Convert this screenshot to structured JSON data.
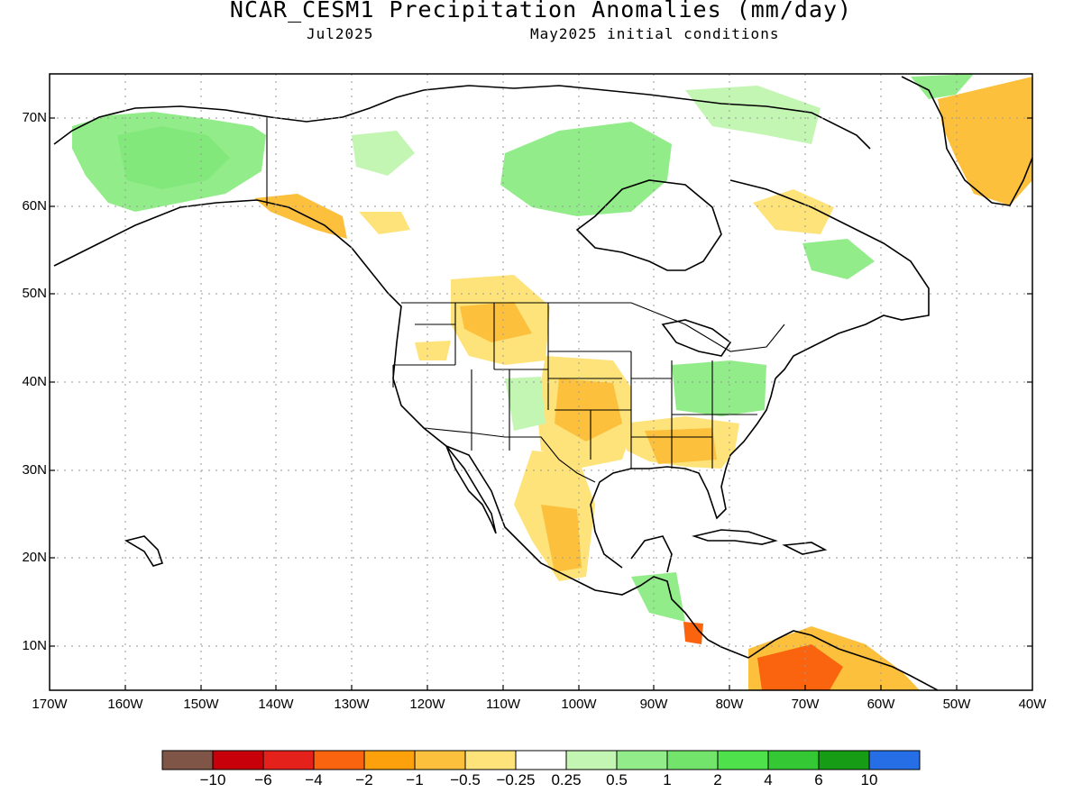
{
  "header": {
    "title": "NCAR_CESM1 Precipitation Anomalies (mm/day)",
    "target_month": "Jul2025",
    "initial_conditions": "May2025 initial conditions"
  },
  "axes": {
    "lat_labels": [
      "70N",
      "60N",
      "50N",
      "40N",
      "30N",
      "20N",
      "10N"
    ],
    "lon_labels": [
      "170W",
      "160W",
      "150W",
      "140W",
      "130W",
      "120W",
      "110W",
      "100W",
      "90W",
      "80W",
      "70W",
      "60W",
      "50W",
      "40W"
    ]
  },
  "colorbar": {
    "labels": [
      "−10",
      "−6",
      "−4",
      "−2",
      "−1",
      "−0.5",
      "−0.25",
      "0.25",
      "0.5",
      "1",
      "2",
      "4",
      "6",
      "10"
    ],
    "colors": [
      "#7f5547",
      "#c8000a",
      "#e4211a",
      "#fa640e",
      "#fca00c",
      "#fcc03d",
      "#fde37a",
      "#ffffff",
      "#c3f5b3",
      "#93ec8a",
      "#73e46b",
      "#4fe14b",
      "#34c834",
      "#179c16",
      "#266ee5"
    ]
  },
  "map": {
    "projection": "cylindrical",
    "lon_range": [
      -170,
      -40
    ],
    "lat_range": [
      5,
      75
    ],
    "grid": "dotted",
    "field": "precipitation anomaly (mm/day)"
  }
}
